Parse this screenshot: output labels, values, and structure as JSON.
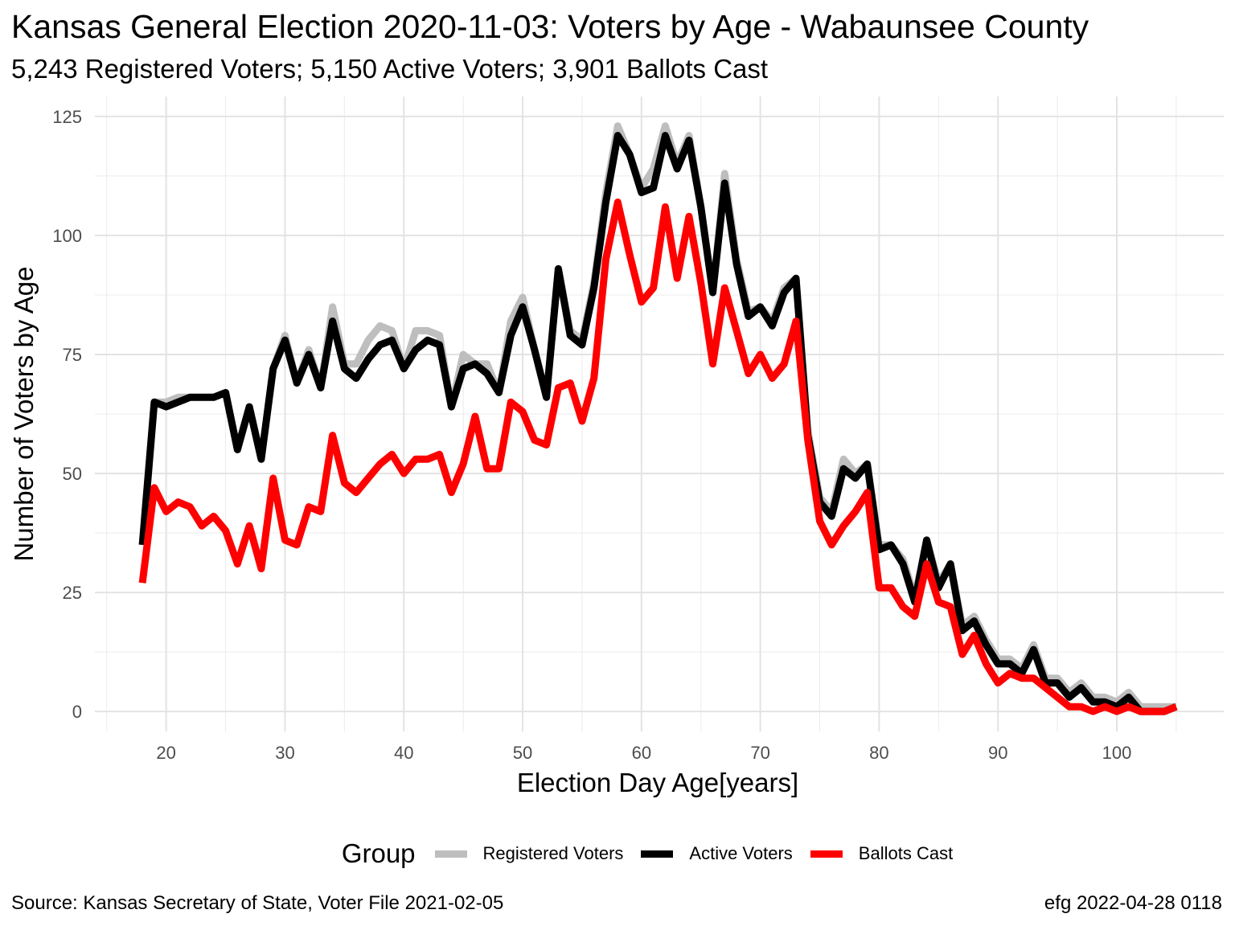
{
  "chart_data": {
    "type": "line",
    "title": "Kansas General Election 2020-11-03:  Voters by Age - Wabaunsee County",
    "subtitle": "5,243 Registered Voters; 5,150 Active Voters; 3,901 Ballots Cast",
    "xlabel": "Election Day Age[years]",
    "ylabel": "Number of Voters by Age",
    "xlim": [
      18,
      105
    ],
    "ylim": [
      0,
      125
    ],
    "x_ticks": [
      20,
      30,
      40,
      50,
      60,
      70,
      80,
      90,
      100
    ],
    "y_ticks": [
      0,
      25,
      50,
      75,
      100,
      125
    ],
    "grid": true,
    "legend_title": "Group",
    "legend_position": "bottom",
    "x": [
      18,
      19,
      20,
      21,
      22,
      23,
      24,
      25,
      26,
      27,
      28,
      29,
      30,
      31,
      32,
      33,
      34,
      35,
      36,
      37,
      38,
      39,
      40,
      41,
      42,
      43,
      44,
      45,
      46,
      47,
      48,
      49,
      50,
      51,
      52,
      53,
      54,
      55,
      56,
      57,
      58,
      59,
      60,
      61,
      62,
      63,
      64,
      65,
      66,
      67,
      68,
      69,
      70,
      71,
      72,
      73,
      74,
      75,
      76,
      77,
      78,
      79,
      80,
      81,
      82,
      83,
      84,
      85,
      86,
      87,
      88,
      89,
      90,
      91,
      92,
      93,
      94,
      95,
      96,
      97,
      98,
      99,
      100,
      101,
      102,
      103,
      104,
      105
    ],
    "series": [
      {
        "name": "Registered Voters",
        "color": "#bebebe",
        "values": [
          35,
          65,
          65,
          66,
          66,
          66,
          66,
          67,
          55,
          64,
          53,
          72,
          79,
          69,
          76,
          68,
          85,
          73,
          73,
          78,
          81,
          80,
          72,
          80,
          80,
          79,
          64,
          75,
          73,
          73,
          67,
          82,
          87,
          76,
          66,
          93,
          80,
          78,
          90,
          109,
          123,
          117,
          110,
          114,
          123,
          115,
          121,
          106,
          88,
          113,
          95,
          84,
          85,
          82,
          89,
          91,
          59,
          45,
          42,
          53,
          50,
          52,
          35,
          35,
          32,
          24,
          36,
          27,
          31,
          18,
          20,
          15,
          11,
          11,
          9,
          14,
          7,
          7,
          4,
          6,
          3,
          3,
          2,
          4,
          1,
          1,
          1,
          1
        ]
      },
      {
        "name": "Active Voters",
        "color": "#000000",
        "values": [
          35,
          65,
          64,
          65,
          66,
          66,
          66,
          67,
          55,
          64,
          53,
          72,
          78,
          69,
          75,
          68,
          82,
          72,
          70,
          74,
          77,
          78,
          72,
          76,
          78,
          77,
          64,
          72,
          73,
          71,
          67,
          79,
          85,
          76,
          66,
          93,
          79,
          77,
          89,
          107,
          121,
          117,
          109,
          110,
          121,
          114,
          120,
          106,
          88,
          111,
          94,
          83,
          85,
          81,
          88,
          91,
          58,
          44,
          41,
          51,
          49,
          52,
          34,
          35,
          31,
          23,
          36,
          26,
          31,
          17,
          19,
          14,
          10,
          10,
          8,
          13,
          6,
          6,
          3,
          5,
          2,
          2,
          1,
          3,
          0,
          0,
          0,
          1
        ]
      },
      {
        "name": "Ballots Cast",
        "color": "#ff0000",
        "values": [
          27,
          47,
          42,
          44,
          43,
          39,
          41,
          38,
          31,
          39,
          30,
          49,
          36,
          35,
          43,
          42,
          58,
          48,
          46,
          49,
          52,
          54,
          50,
          53,
          53,
          54,
          46,
          52,
          62,
          51,
          51,
          65,
          63,
          57,
          56,
          68,
          69,
          61,
          70,
          95,
          107,
          96,
          86,
          89,
          106,
          91,
          104,
          90,
          73,
          89,
          80,
          71,
          75,
          70,
          73,
          82,
          57,
          40,
          35,
          39,
          42,
          46,
          26,
          26,
          22,
          20,
          31,
          23,
          22,
          12,
          16,
          10,
          6,
          8,
          7,
          7,
          5,
          3,
          1,
          1,
          0,
          1,
          0,
          1,
          0,
          0,
          0,
          1
        ]
      }
    ]
  },
  "footer": {
    "source": "Source:  Kansas Secretary of State, Voter File  2021-02-05",
    "credit": "efg 2022-04-28 0118"
  }
}
